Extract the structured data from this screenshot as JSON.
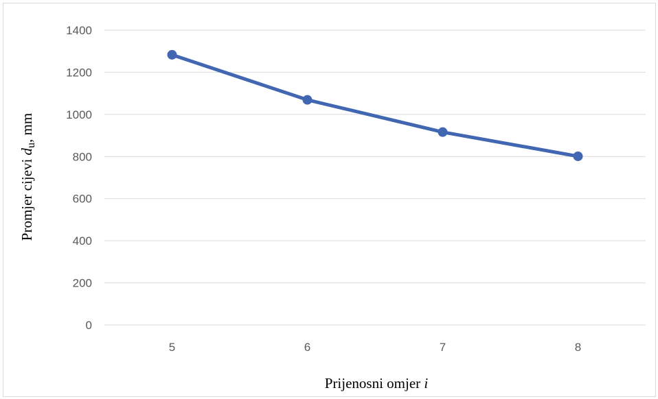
{
  "chart_data": {
    "type": "line",
    "categories": [
      "5",
      "6",
      "7",
      "8"
    ],
    "x": [
      5,
      6,
      7,
      8
    ],
    "series": [
      {
        "values": [
          1283,
          1069,
          916,
          801
        ],
        "color": "#4267b2"
      }
    ],
    "ylim": [
      0,
      1400
    ],
    "yticks": [
      0,
      200,
      400,
      600,
      800,
      1000,
      1200,
      1400
    ],
    "ytick_labels": [
      "0",
      "200",
      "400",
      "600",
      "800",
      "1000",
      "1200",
      "1400"
    ],
    "xlabel": {
      "main": "Prijenosni omjer ",
      "symbol": "i"
    },
    "ylabel": {
      "main": "Promjer cijevi ",
      "symbol": "d",
      "subscript": "u",
      "unit": ", mm"
    },
    "grid": true,
    "legend": "none",
    "marker": "circle"
  }
}
